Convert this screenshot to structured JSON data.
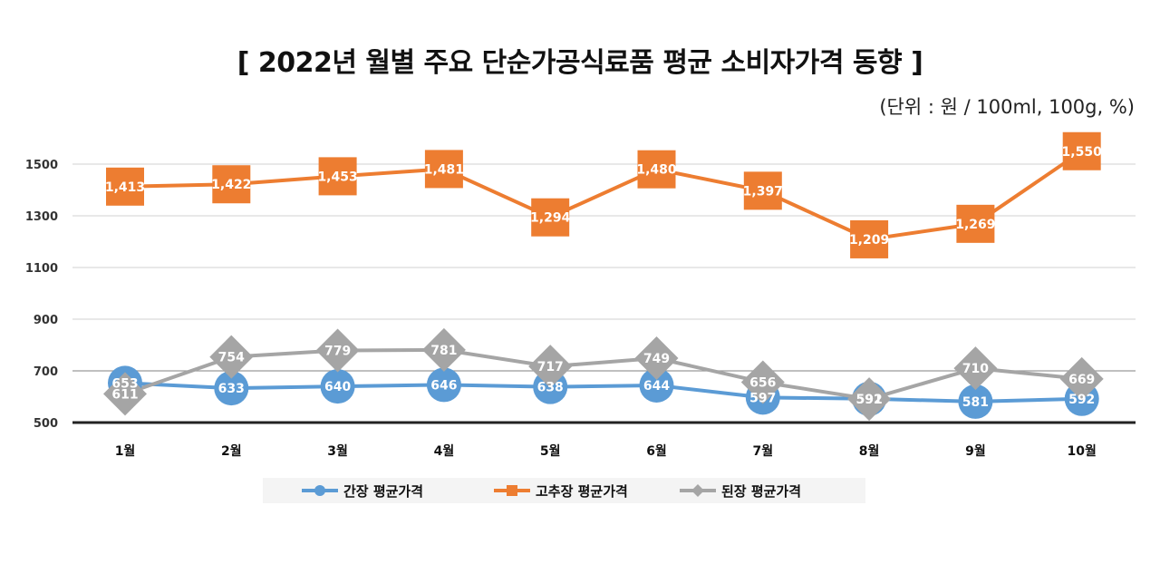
{
  "chart_data": {
    "type": "line",
    "title": "[ 2022년 월별 주요 단순가공식료품 평균 소비자가격 동향 ]",
    "unit": "(단위 : 원 / 100ml, 100g, %)",
    "categories": [
      "1월",
      "2월",
      "3월",
      "4월",
      "5월",
      "6월",
      "7월",
      "8월",
      "9월",
      "10월"
    ],
    "series": [
      {
        "name": "간장 평균가격",
        "values": [
          653,
          633,
          640,
          646,
          638,
          644,
          597,
          592,
          581,
          592
        ],
        "color": "#5b9bd5",
        "marker": "circle"
      },
      {
        "name": "고추장 평균가격",
        "values": [
          1413,
          1422,
          1453,
          1481,
          1294,
          1480,
          1397,
          1209,
          1269,
          1550
        ],
        "color": "#ed7d31",
        "marker": "square"
      },
      {
        "name": "된장 평균가격",
        "values": [
          611,
          754,
          779,
          781,
          717,
          749,
          656,
          591,
          710,
          669
        ],
        "color": "#a5a5a5",
        "marker": "diamond"
      }
    ],
    "data_labels": [
      [
        "653",
        "633",
        "640",
        "646",
        "638",
        "644",
        "597",
        "592",
        "581",
        "592"
      ],
      [
        "1,413",
        "1,422",
        "1,453",
        "1,481",
        "1,294",
        "1,480",
        "1,397",
        "1,209",
        "1,269",
        "1,550"
      ],
      [
        "611",
        "754",
        "779",
        "781",
        "717",
        "749",
        "656",
        "591",
        "710",
        "669"
      ]
    ],
    "yticks": [
      500,
      700,
      900,
      1100,
      1300,
      1500
    ],
    "ylim": [
      500,
      1600
    ],
    "grid": true,
    "legend": "bottom"
  }
}
